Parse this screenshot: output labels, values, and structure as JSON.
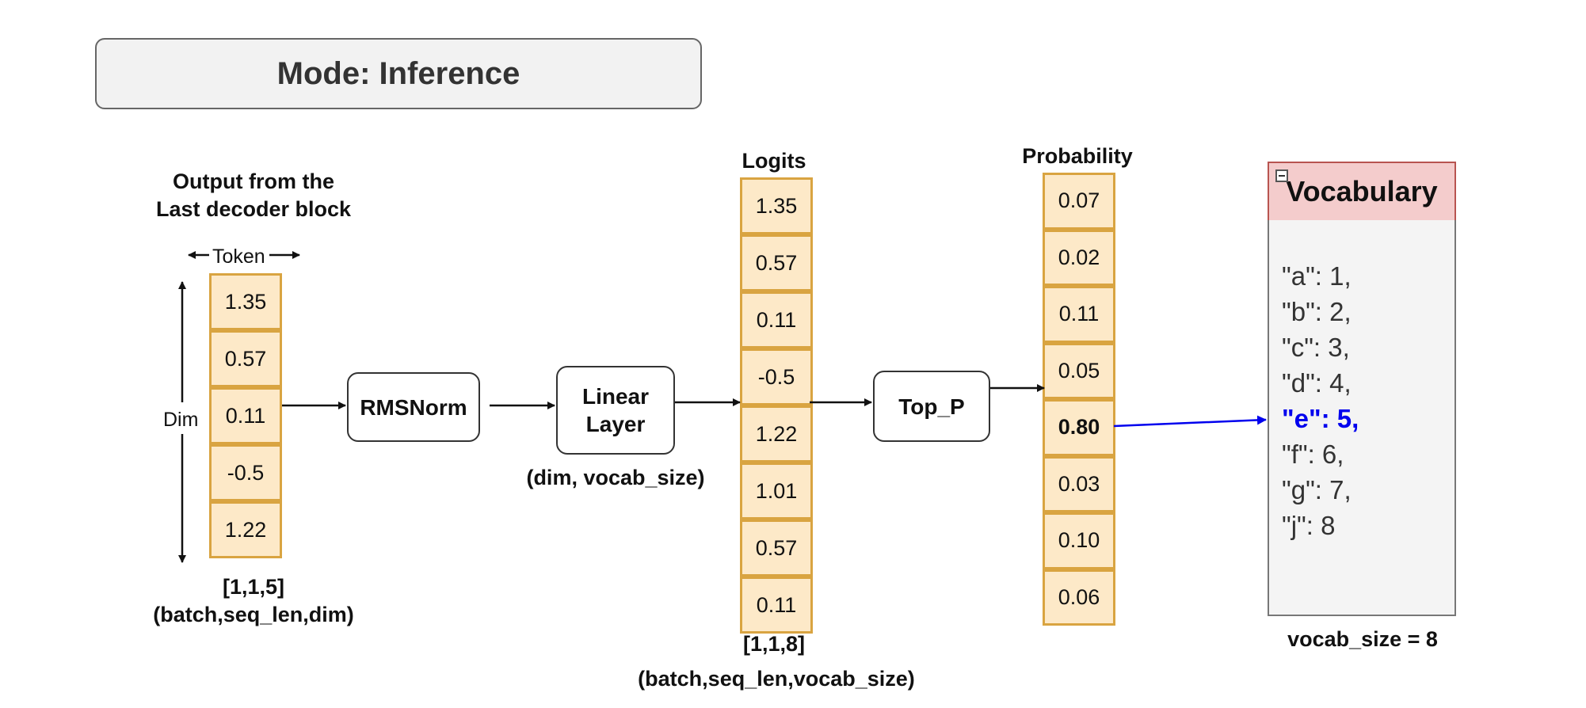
{
  "mode_label": "Mode: Inference",
  "input": {
    "title_line1": "Output from the",
    "title_line2": "Last decoder block",
    "token_label": "Token",
    "dim_label": "Dim",
    "values": [
      "1.35",
      "0.57",
      "0.11",
      "-0.5",
      "1.22"
    ],
    "shape": "[1,1,5]",
    "shape_desc": "(batch,seq_len,dim)"
  },
  "blocks": {
    "rmsnorm": "RMSNorm",
    "linear_line1": "Linear",
    "linear_line2": "Layer",
    "linear_shape": "(dim, vocab_size)",
    "top_p": "Top_P"
  },
  "logits": {
    "title": "Logits",
    "values": [
      "1.35",
      "0.57",
      "0.11",
      "-0.5",
      "1.22",
      "1.01",
      "0.57",
      "0.11"
    ],
    "shape": "[1,1,8]",
    "shape_desc": "(batch,seq_len,vocab_size)"
  },
  "probability": {
    "title": "Probability",
    "values": [
      "0.07",
      "0.02",
      "0.11",
      "0.05",
      "0.80",
      "0.03",
      "0.10",
      "0.06"
    ],
    "selected_index": 4
  },
  "vocabulary": {
    "title": "Vocabulary",
    "entries": [
      "\"a\": 1,",
      "\"b\": 2,",
      "\"c\": 3,",
      "\"d\": 4,",
      "\"e\": 5,",
      "\"f\": 6,",
      "\"g\": 7,",
      "\"j\": 8"
    ],
    "selected_index": 4,
    "size_label": "vocab_size = 8"
  },
  "colors": {
    "cell_fill": "#fde9c8",
    "cell_border": "#d9a441",
    "selection": "#0000ee",
    "vocab_header": "#f4cccc"
  }
}
